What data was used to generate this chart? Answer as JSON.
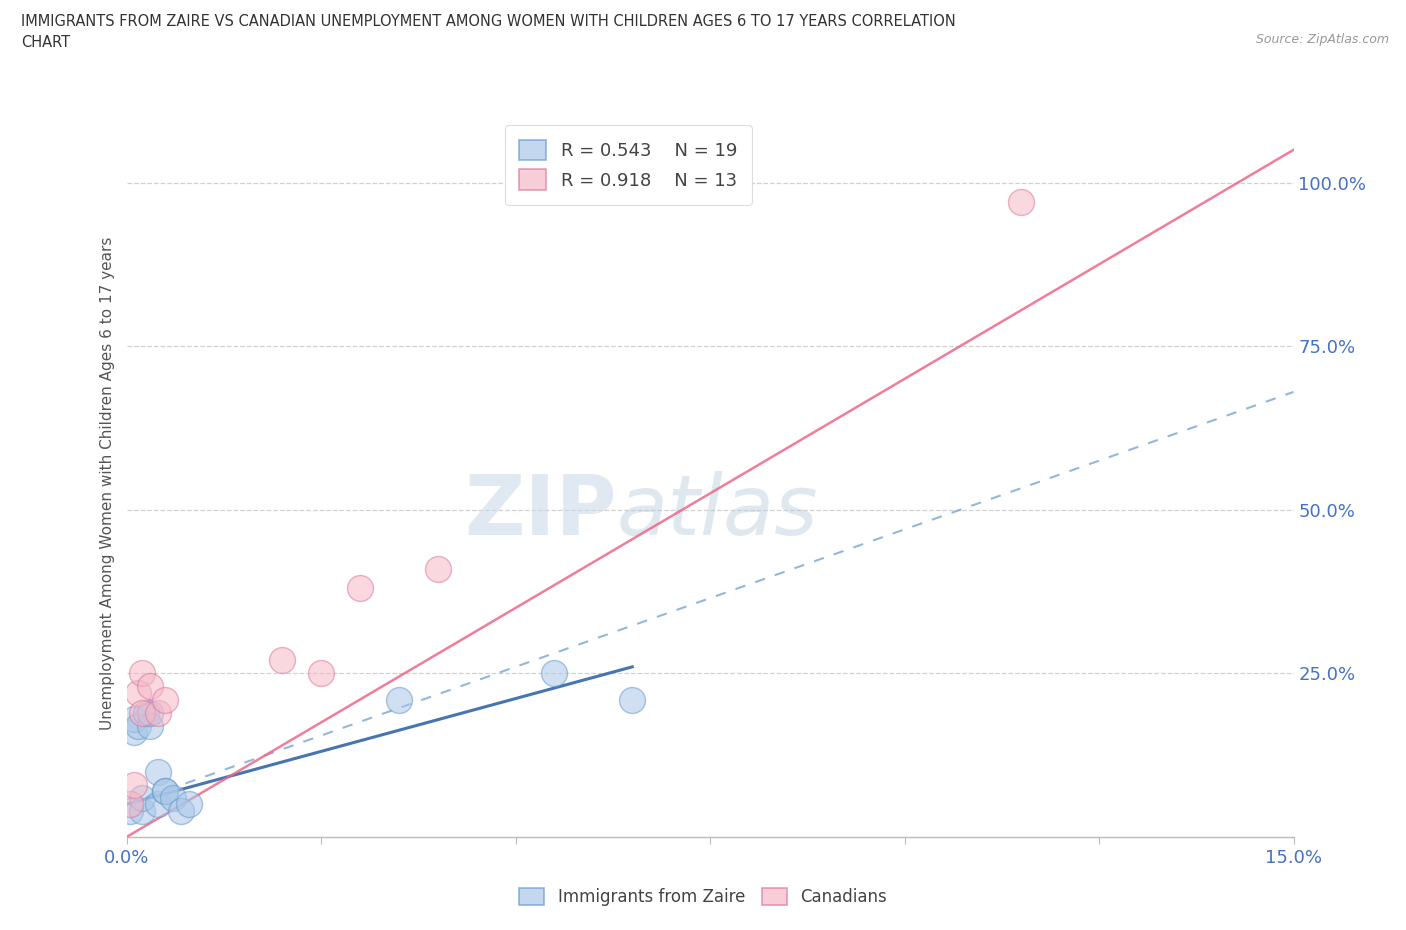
{
  "title_line1": "IMMIGRANTS FROM ZAIRE VS CANADIAN UNEMPLOYMENT AMONG WOMEN WITH CHILDREN AGES 6 TO 17 YEARS CORRELATION",
  "title_line2": "CHART",
  "source": "Source: ZipAtlas.com",
  "ylabel": "Unemployment Among Women with Children Ages 6 to 17 years",
  "xlim": [
    0.0,
    0.15
  ],
  "ylim": [
    0.0,
    1.08
  ],
  "xticks": [
    0.0,
    0.025,
    0.05,
    0.075,
    0.1,
    0.125,
    0.15
  ],
  "yticks_right": [
    0.25,
    0.5,
    0.75,
    1.0
  ],
  "ytick_right_labels": [
    "25.0%",
    "50.0%",
    "75.0%",
    "100.0%"
  ],
  "blue_scatter_x": [
    0.0005,
    0.001,
    0.001,
    0.0015,
    0.002,
    0.002,
    0.0025,
    0.003,
    0.003,
    0.004,
    0.004,
    0.005,
    0.005,
    0.006,
    0.007,
    0.008,
    0.035,
    0.055,
    0.065
  ],
  "blue_scatter_y": [
    0.04,
    0.16,
    0.18,
    0.17,
    0.04,
    0.06,
    0.19,
    0.17,
    0.19,
    0.1,
    0.05,
    0.07,
    0.07,
    0.06,
    0.04,
    0.05,
    0.21,
    0.25,
    0.21
  ],
  "pink_scatter_x": [
    0.0005,
    0.001,
    0.0015,
    0.002,
    0.002,
    0.003,
    0.004,
    0.005,
    0.02,
    0.025,
    0.03,
    0.04,
    0.115
  ],
  "pink_scatter_y": [
    0.05,
    0.08,
    0.22,
    0.19,
    0.25,
    0.23,
    0.19,
    0.21,
    0.27,
    0.25,
    0.38,
    0.41,
    0.97
  ],
  "blue_solid_line_x": [
    0.0,
    0.065
  ],
  "blue_solid_line_y": [
    0.05,
    0.26
  ],
  "blue_dash_line_x": [
    0.0,
    0.15
  ],
  "blue_dash_line_y": [
    0.05,
    0.68
  ],
  "pink_solid_line_x": [
    0.0,
    0.15
  ],
  "pink_solid_line_y": [
    0.0,
    1.05
  ],
  "blue_scatter_color": "#aac8e8",
  "blue_scatter_edge": "#6699cc",
  "pink_scatter_color": "#f5b8c8",
  "pink_scatter_edge": "#dd7799",
  "blue_solid_color": "#3366aa",
  "blue_dash_color": "#6699cc",
  "pink_line_color": "#ee6688",
  "R_blue": "0.543",
  "N_blue": "19",
  "R_pink": "0.918",
  "N_pink": "13",
  "watermark_zip": "ZIP",
  "watermark_atlas": "atlas",
  "background_color": "#ffffff",
  "grid_color": "#cccccc",
  "axis_color": "#bbbbbb",
  "tick_label_color": "#4472c4",
  "ylabel_color": "#555555",
  "title_color": "#333333",
  "legend_label1_color": "#555555",
  "legend_r1_color": "#4472c4",
  "legend_r2_color": "#ee6688"
}
